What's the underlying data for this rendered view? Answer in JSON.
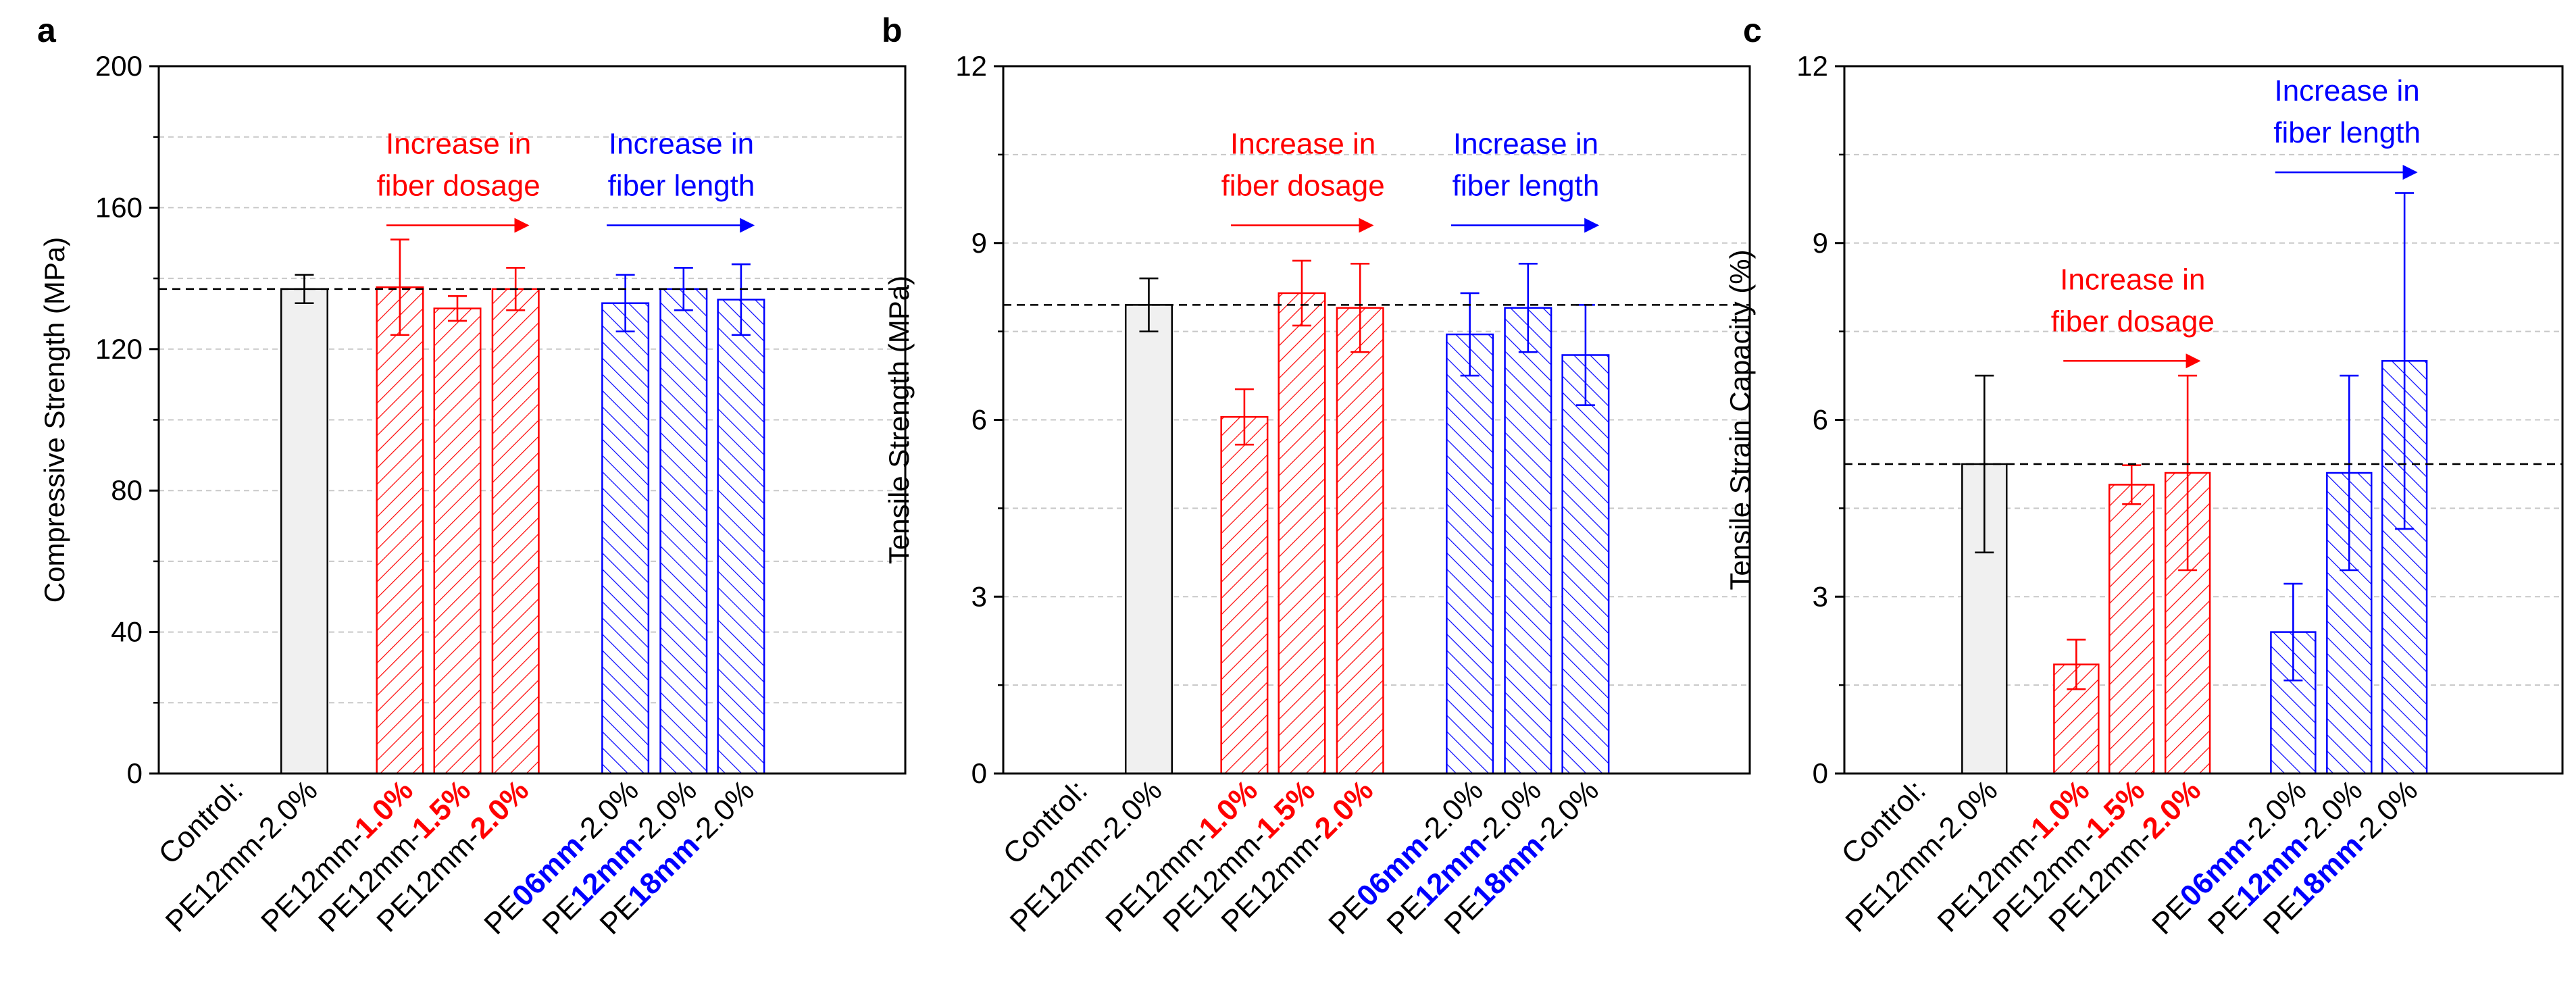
{
  "colors": {
    "control": "#000000",
    "control_fill": "#f0f0f0",
    "dosage": "#ff0000",
    "length": "#0000ff",
    "reference_line": "#000000",
    "grid": "#c8c8c8"
  },
  "chart_data": [
    {
      "type": "bar",
      "panel_label": "a",
      "ylabel": "Compressive Strength (MPa)",
      "xlabel": "",
      "ylim": [
        0,
        200
      ],
      "yticks": [
        "0",
        "40",
        "80",
        "120",
        "160",
        "200"
      ],
      "grid": true,
      "reference_line": 137,
      "categories": [
        {
          "segments": [
            {
              "text": "Control:",
              "style": "normal"
            }
          ]
        },
        {
          "segments": [
            {
              "text": "PE12mm-2.0%",
              "style": "normal"
            }
          ]
        },
        {
          "segments": [
            {
              "text": "PE12mm-",
              "style": "normal"
            },
            {
              "text": "1.0%",
              "style": "dosage"
            }
          ]
        },
        {
          "segments": [
            {
              "text": "PE12mm-",
              "style": "normal"
            },
            {
              "text": "1.5%",
              "style": "dosage"
            }
          ]
        },
        {
          "segments": [
            {
              "text": "PE12mm-",
              "style": "normal"
            },
            {
              "text": "2.0%",
              "style": "dosage"
            }
          ]
        },
        {
          "segments": [
            {
              "text": "PE",
              "style": "normal"
            },
            {
              "text": "06mm",
              "style": "length"
            },
            {
              "text": "-2.0%",
              "style": "normal"
            }
          ]
        },
        {
          "segments": [
            {
              "text": "PE",
              "style": "normal"
            },
            {
              "text": "12mm",
              "style": "length"
            },
            {
              "text": "-2.0%",
              "style": "normal"
            }
          ]
        },
        {
          "segments": [
            {
              "text": "PE",
              "style": "normal"
            },
            {
              "text": "18mm",
              "style": "length"
            },
            {
              "text": "-2.0%",
              "style": "normal"
            }
          ]
        }
      ],
      "bars": [
        {
          "group": "control",
          "value": 137,
          "error": 4
        },
        {
          "group": "dosage",
          "value": 137.5,
          "error": 13.5
        },
        {
          "group": "dosage",
          "value": 131.5,
          "error": 3.5
        },
        {
          "group": "dosage",
          "value": 137,
          "error": 6
        },
        {
          "group": "length",
          "value": 133,
          "error": 8
        },
        {
          "group": "length",
          "value": 137,
          "error": 6
        },
        {
          "group": "length",
          "value": 134,
          "error": 10
        }
      ],
      "annotations": [
        {
          "group": "dosage",
          "lines": [
            "Increase in",
            "fiber dosage"
          ],
          "y_value": 155
        },
        {
          "group": "length",
          "lines": [
            "Increase in",
            "fiber length"
          ],
          "y_value": 155
        }
      ]
    },
    {
      "type": "bar",
      "panel_label": "b",
      "ylabel": "Tensile Strength (MPa)",
      "xlabel": "",
      "ylim": [
        0,
        12
      ],
      "yticks": [
        "0",
        "3",
        "6",
        "9",
        "12"
      ],
      "grid": true,
      "reference_line": 7.95,
      "categories": [
        {
          "segments": [
            {
              "text": "Control:",
              "style": "normal"
            }
          ]
        },
        {
          "segments": [
            {
              "text": "PE12mm-2.0%",
              "style": "normal"
            }
          ]
        },
        {
          "segments": [
            {
              "text": "PE12mm-",
              "style": "normal"
            },
            {
              "text": "1.0%",
              "style": "dosage"
            }
          ]
        },
        {
          "segments": [
            {
              "text": "PE12mm-",
              "style": "normal"
            },
            {
              "text": "1.5%",
              "style": "dosage"
            }
          ]
        },
        {
          "segments": [
            {
              "text": "PE12mm-",
              "style": "normal"
            },
            {
              "text": "2.0%",
              "style": "dosage"
            }
          ]
        },
        {
          "segments": [
            {
              "text": "PE",
              "style": "normal"
            },
            {
              "text": "06mm",
              "style": "length"
            },
            {
              "text": "-2.0%",
              "style": "normal"
            }
          ]
        },
        {
          "segments": [
            {
              "text": "PE",
              "style": "normal"
            },
            {
              "text": "12mm",
              "style": "length"
            },
            {
              "text": "-2.0%",
              "style": "normal"
            }
          ]
        },
        {
          "segments": [
            {
              "text": "PE",
              "style": "normal"
            },
            {
              "text": "18mm",
              "style": "length"
            },
            {
              "text": "-2.0%",
              "style": "normal"
            }
          ]
        }
      ],
      "bars": [
        {
          "group": "control",
          "value": 7.95,
          "error": 0.45
        },
        {
          "group": "dosage",
          "value": 6.05,
          "error": 0.47
        },
        {
          "group": "dosage",
          "value": 8.15,
          "error": 0.55
        },
        {
          "group": "dosage",
          "value": 7.9,
          "error": 0.75
        },
        {
          "group": "length",
          "value": 7.45,
          "error": 0.7
        },
        {
          "group": "length",
          "value": 7.9,
          "error": 0.75
        },
        {
          "group": "length",
          "value": 7.1,
          "error": 0.85
        }
      ],
      "annotations": [
        {
          "group": "dosage",
          "lines": [
            "Increase in",
            "fiber dosage"
          ],
          "y_value": 9.3
        },
        {
          "group": "length",
          "lines": [
            "Increase in",
            "fiber length"
          ],
          "y_value": 9.3
        }
      ]
    },
    {
      "type": "bar",
      "panel_label": "c",
      "ylabel": "Tensile Strain Capacity (%)",
      "xlabel": "",
      "ylim": [
        0,
        12
      ],
      "yticks": [
        "0",
        "3",
        "6",
        "9",
        "12"
      ],
      "grid": true,
      "reference_line": 5.25,
      "categories": [
        {
          "segments": [
            {
              "text": "Control:",
              "style": "normal"
            }
          ]
        },
        {
          "segments": [
            {
              "text": "PE12mm-2.0%",
              "style": "normal"
            }
          ]
        },
        {
          "segments": [
            {
              "text": "PE12mm-",
              "style": "normal"
            },
            {
              "text": "1.0%",
              "style": "dosage"
            }
          ]
        },
        {
          "segments": [
            {
              "text": "PE12mm-",
              "style": "normal"
            },
            {
              "text": "1.5%",
              "style": "dosage"
            }
          ]
        },
        {
          "segments": [
            {
              "text": "PE12mm-",
              "style": "normal"
            },
            {
              "text": "2.0%",
              "style": "dosage"
            }
          ]
        },
        {
          "segments": [
            {
              "text": "PE",
              "style": "normal"
            },
            {
              "text": "06mm",
              "style": "length"
            },
            {
              "text": "-2.0%",
              "style": "normal"
            }
          ]
        },
        {
          "segments": [
            {
              "text": "PE",
              "style": "normal"
            },
            {
              "text": "12mm",
              "style": "length"
            },
            {
              "text": "-2.0%",
              "style": "normal"
            }
          ]
        },
        {
          "segments": [
            {
              "text": "PE",
              "style": "normal"
            },
            {
              "text": "18mm",
              "style": "length"
            },
            {
              "text": "-2.0%",
              "style": "normal"
            }
          ]
        }
      ],
      "bars": [
        {
          "group": "control",
          "value": 5.25,
          "error": 1.5
        },
        {
          "group": "dosage",
          "value": 1.85,
          "error": 0.42
        },
        {
          "group": "dosage",
          "value": 4.9,
          "error": 0.33
        },
        {
          "group": "dosage",
          "value": 5.1,
          "error": 1.65
        },
        {
          "group": "length",
          "value": 2.4,
          "error": 0.82
        },
        {
          "group": "length",
          "value": 5.1,
          "error": 1.65
        },
        {
          "group": "length",
          "value": 7.0,
          "error": 2.85
        }
      ],
      "annotations": [
        {
          "group": "dosage",
          "lines": [
            "Increase in",
            "fiber dosage"
          ],
          "y_value": 7.0
        },
        {
          "group": "length",
          "lines": [
            "Increase in",
            "fiber length"
          ],
          "y_value": 10.2
        }
      ]
    }
  ]
}
